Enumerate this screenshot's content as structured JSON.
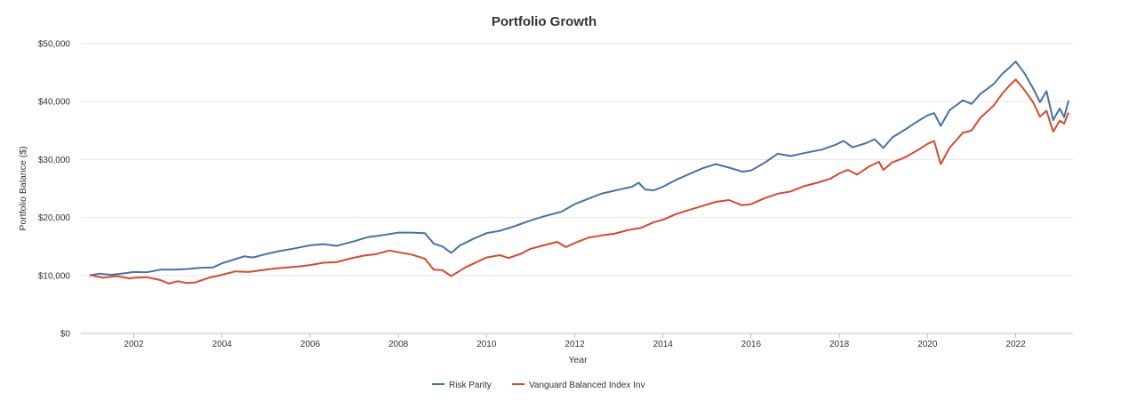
{
  "chart_data": {
    "type": "line",
    "title": "Portfolio Growth",
    "xlabel": "Year",
    "ylabel": "Portfolio Balance ($)",
    "xlim": [
      2000.8,
      2023.3
    ],
    "ylim": [
      0,
      50000
    ],
    "x_ticks": [
      2002,
      2004,
      2006,
      2008,
      2010,
      2012,
      2014,
      2016,
      2018,
      2020,
      2022
    ],
    "x_tick_labels": [
      "2002",
      "2004",
      "2006",
      "2008",
      "2010",
      "2012",
      "2014",
      "2016",
      "2018",
      "2020",
      "2022"
    ],
    "y_ticks": [
      0,
      10000,
      20000,
      30000,
      40000,
      50000
    ],
    "y_tick_labels": [
      "$0",
      "$10,000",
      "$20,000",
      "$30,000",
      "$40,000",
      "$50,000"
    ],
    "grid": "horizontal",
    "legend_position": "bottom-center",
    "series": [
      {
        "name": "Risk Parity",
        "color": "#4572a7",
        "points": [
          [
            2001.0,
            10000
          ],
          [
            2001.2,
            10300
          ],
          [
            2001.5,
            10100
          ],
          [
            2001.8,
            10400
          ],
          [
            2002.0,
            10600
          ],
          [
            2002.3,
            10550
          ],
          [
            2002.6,
            11000
          ],
          [
            2002.9,
            11000
          ],
          [
            2003.2,
            11100
          ],
          [
            2003.5,
            11300
          ],
          [
            2003.8,
            11400
          ],
          [
            2004.0,
            12100
          ],
          [
            2004.3,
            12800
          ],
          [
            2004.5,
            13300
          ],
          [
            2004.7,
            13100
          ],
          [
            2005.0,
            13700
          ],
          [
            2005.3,
            14200
          ],
          [
            2005.6,
            14600
          ],
          [
            2006.0,
            15200
          ],
          [
            2006.3,
            15400
          ],
          [
            2006.6,
            15100
          ],
          [
            2007.0,
            15900
          ],
          [
            2007.3,
            16600
          ],
          [
            2007.6,
            16900
          ],
          [
            2008.0,
            17400
          ],
          [
            2008.3,
            17400
          ],
          [
            2008.6,
            17300
          ],
          [
            2008.8,
            15500
          ],
          [
            2009.0,
            15000
          ],
          [
            2009.2,
            13900
          ],
          [
            2009.4,
            15200
          ],
          [
            2009.7,
            16300
          ],
          [
            2010.0,
            17300
          ],
          [
            2010.3,
            17700
          ],
          [
            2010.6,
            18400
          ],
          [
            2011.0,
            19500
          ],
          [
            2011.3,
            20200
          ],
          [
            2011.7,
            21000
          ],
          [
            2012.0,
            22300
          ],
          [
            2012.3,
            23200
          ],
          [
            2012.6,
            24100
          ],
          [
            2013.0,
            24800
          ],
          [
            2013.3,
            25300
          ],
          [
            2013.45,
            26000
          ],
          [
            2013.6,
            24800
          ],
          [
            2013.8,
            24700
          ],
          [
            2014.0,
            25300
          ],
          [
            2014.3,
            26500
          ],
          [
            2014.6,
            27500
          ],
          [
            2014.9,
            28500
          ],
          [
            2015.2,
            29200
          ],
          [
            2015.5,
            28600
          ],
          [
            2015.8,
            27900
          ],
          [
            2016.0,
            28100
          ],
          [
            2016.3,
            29400
          ],
          [
            2016.6,
            31000
          ],
          [
            2016.9,
            30600
          ],
          [
            2017.2,
            31100
          ],
          [
            2017.6,
            31700
          ],
          [
            2017.9,
            32500
          ],
          [
            2018.1,
            33200
          ],
          [
            2018.3,
            32100
          ],
          [
            2018.6,
            32800
          ],
          [
            2018.8,
            33500
          ],
          [
            2019.0,
            32000
          ],
          [
            2019.2,
            33800
          ],
          [
            2019.5,
            35200
          ],
          [
            2019.8,
            36700
          ],
          [
            2020.0,
            37600
          ],
          [
            2020.15,
            38000
          ],
          [
            2020.3,
            35800
          ],
          [
            2020.5,
            38500
          ],
          [
            2020.8,
            40200
          ],
          [
            2021.0,
            39600
          ],
          [
            2021.2,
            41300
          ],
          [
            2021.5,
            43000
          ],
          [
            2021.7,
            44800
          ],
          [
            2021.85,
            45800
          ],
          [
            2022.0,
            46900
          ],
          [
            2022.2,
            44900
          ],
          [
            2022.4,
            42200
          ],
          [
            2022.55,
            39900
          ],
          [
            2022.7,
            41800
          ],
          [
            2022.85,
            36800
          ],
          [
            2023.0,
            38800
          ],
          [
            2023.1,
            37300
          ],
          [
            2023.2,
            40200
          ]
        ]
      },
      {
        "name": "Vanguard Balanced Index Inv",
        "color": "#d9482d",
        "points": [
          [
            2001.0,
            10100
          ],
          [
            2001.3,
            9600
          ],
          [
            2001.6,
            9900
          ],
          [
            2001.9,
            9500
          ],
          [
            2002.0,
            9600
          ],
          [
            2002.3,
            9700
          ],
          [
            2002.6,
            9200
          ],
          [
            2002.8,
            8600
          ],
          [
            2003.0,
            9000
          ],
          [
            2003.2,
            8700
          ],
          [
            2003.4,
            8800
          ],
          [
            2003.7,
            9600
          ],
          [
            2004.0,
            10100
          ],
          [
            2004.3,
            10700
          ],
          [
            2004.6,
            10600
          ],
          [
            2004.9,
            10900
          ],
          [
            2005.2,
            11200
          ],
          [
            2005.5,
            11400
          ],
          [
            2005.8,
            11600
          ],
          [
            2006.0,
            11800
          ],
          [
            2006.3,
            12200
          ],
          [
            2006.6,
            12300
          ],
          [
            2006.9,
            12900
          ],
          [
            2007.2,
            13400
          ],
          [
            2007.5,
            13700
          ],
          [
            2007.8,
            14300
          ],
          [
            2008.0,
            14000
          ],
          [
            2008.3,
            13600
          ],
          [
            2008.6,
            12900
          ],
          [
            2008.8,
            11000
          ],
          [
            2009.0,
            10900
          ],
          [
            2009.2,
            9900
          ],
          [
            2009.5,
            11300
          ],
          [
            2009.8,
            12400
          ],
          [
            2010.0,
            13100
          ],
          [
            2010.3,
            13500
          ],
          [
            2010.5,
            13000
          ],
          [
            2010.8,
            13800
          ],
          [
            2011.0,
            14600
          ],
          [
            2011.3,
            15200
          ],
          [
            2011.6,
            15800
          ],
          [
            2011.8,
            14900
          ],
          [
            2012.0,
            15600
          ],
          [
            2012.3,
            16500
          ],
          [
            2012.6,
            16900
          ],
          [
            2012.9,
            17200
          ],
          [
            2013.2,
            17800
          ],
          [
            2013.5,
            18200
          ],
          [
            2013.8,
            19200
          ],
          [
            2014.0,
            19600
          ],
          [
            2014.3,
            20600
          ],
          [
            2014.6,
            21300
          ],
          [
            2014.9,
            22000
          ],
          [
            2015.2,
            22700
          ],
          [
            2015.5,
            23000
          ],
          [
            2015.8,
            22100
          ],
          [
            2016.0,
            22300
          ],
          [
            2016.3,
            23300
          ],
          [
            2016.6,
            24100
          ],
          [
            2016.9,
            24500
          ],
          [
            2017.2,
            25400
          ],
          [
            2017.5,
            26000
          ],
          [
            2017.8,
            26700
          ],
          [
            2018.0,
            27600
          ],
          [
            2018.2,
            28200
          ],
          [
            2018.4,
            27400
          ],
          [
            2018.7,
            28900
          ],
          [
            2018.9,
            29600
          ],
          [
            2019.0,
            28200
          ],
          [
            2019.2,
            29500
          ],
          [
            2019.5,
            30400
          ],
          [
            2019.8,
            31700
          ],
          [
            2020.0,
            32700
          ],
          [
            2020.15,
            33200
          ],
          [
            2020.3,
            29200
          ],
          [
            2020.5,
            32000
          ],
          [
            2020.8,
            34600
          ],
          [
            2021.0,
            35000
          ],
          [
            2021.2,
            37200
          ],
          [
            2021.5,
            39300
          ],
          [
            2021.7,
            41400
          ],
          [
            2021.85,
            42700
          ],
          [
            2022.0,
            43800
          ],
          [
            2022.2,
            42000
          ],
          [
            2022.4,
            39800
          ],
          [
            2022.55,
            37400
          ],
          [
            2022.7,
            38400
          ],
          [
            2022.85,
            34800
          ],
          [
            2023.0,
            36700
          ],
          [
            2023.1,
            36200
          ],
          [
            2023.2,
            38100
          ]
        ]
      }
    ]
  }
}
